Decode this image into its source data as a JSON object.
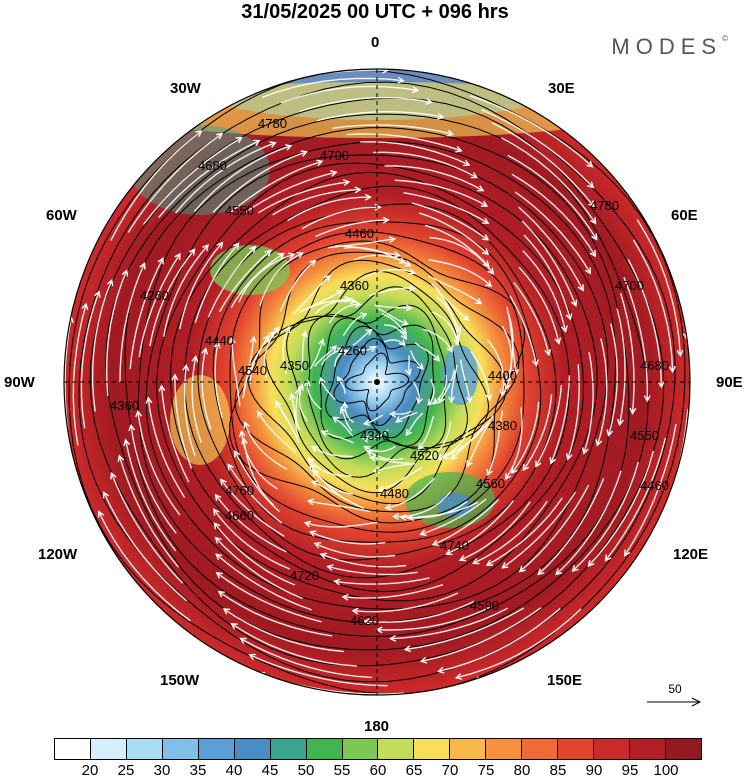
{
  "header": {
    "title": "31/05/2025  00 UTC  + 096 hrs",
    "brand": "MODES",
    "brand_mark": "©"
  },
  "map": {
    "projection": "north polar stereographic",
    "longitude_labels": {
      "top": "0",
      "top_left": "30W",
      "top_right": "30E",
      "upper_left": "60W",
      "upper_right": "60E",
      "left": "90W",
      "right": "90E",
      "lower_left": "120W",
      "lower_right": "120E",
      "bottom_left": "150W",
      "bottom_right": "150E",
      "bottom": "180"
    },
    "contour_labels": [
      "4780",
      "4700",
      "4680",
      "4550",
      "4460",
      "4360",
      "4260",
      "4540",
      "4440",
      "4350",
      "4340",
      "4520",
      "4380",
      "4400",
      "4480",
      "4560",
      "4660",
      "4760",
      "4740",
      "4720",
      "4620",
      "4590"
    ]
  },
  "reference_vector": {
    "label": "50",
    "arrow_icon": "arrow-right"
  },
  "colorbar": {
    "colors": [
      "#ffffff",
      "#d4effb",
      "#a9dcf5",
      "#7fbfe8",
      "#5a9fd6",
      "#4a8cc4",
      "#3aa58f",
      "#41b54f",
      "#7dc855",
      "#c3dc59",
      "#f7df5a",
      "#f9b84a",
      "#f4903e",
      "#ee6a36",
      "#e2442f",
      "#cc2a2a",
      "#b21e25",
      "#941a22"
    ],
    "tick_labels": [
      "20",
      "25",
      "30",
      "35",
      "40",
      "45",
      "50",
      "55",
      "60",
      "65",
      "70",
      "75",
      "80",
      "85",
      "90",
      "95",
      "100"
    ]
  }
}
